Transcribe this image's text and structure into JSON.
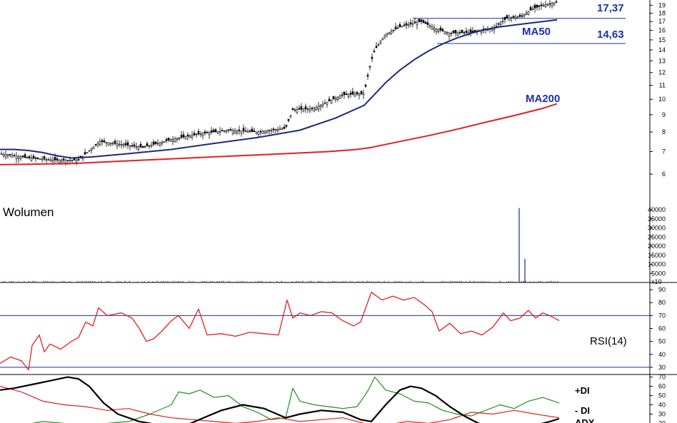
{
  "colors": {
    "ma50": "#1c2a7a",
    "ma200": "#e02020",
    "candle": "#000000",
    "volume": "#1c2a7a",
    "rsi": "#e02020",
    "rsi_bounds": "#1a2fb0",
    "plus_di": "#1f8f1f",
    "minus_di": "#e02020",
    "adx": "#000000",
    "annotation": "#1a2fb0"
  },
  "chart_data": [
    {
      "type": "line",
      "panel": "price",
      "log_scale": true,
      "ylim": [
        5.5,
        19.5
      ],
      "y_ticks": [
        "19",
        "18",
        "17",
        "16",
        "15",
        "14",
        "13",
        "12",
        "11",
        "10",
        "9",
        "8",
        "7",
        "6"
      ],
      "series": [
        {
          "name": "MA50",
          "x": [
            0,
            20,
            40,
            60,
            80,
            100,
            130,
            180,
            240,
            300,
            360,
            420,
            470,
            510,
            520,
            540,
            560,
            580,
            600,
            620,
            640,
            660,
            680,
            700,
            720,
            740,
            760,
            780
          ],
          "values": [
            7.1,
            7.1,
            7.05,
            6.95,
            6.8,
            6.7,
            6.75,
            6.9,
            7.1,
            7.4,
            7.7,
            8.1,
            8.8,
            9.6,
            10.1,
            11.2,
            12.2,
            13.1,
            13.9,
            14.6,
            15.2,
            15.7,
            16.1,
            16.4,
            16.6,
            16.8,
            17.0,
            17.2
          ]
        },
        {
          "name": "MA200",
          "x": [
            0,
            100,
            200,
            300,
            400,
            460,
            500,
            520,
            560,
            600,
            640,
            680,
            720,
            760,
            780
          ],
          "values": [
            6.4,
            6.45,
            6.6,
            6.75,
            6.9,
            7.0,
            7.1,
            7.2,
            7.5,
            7.8,
            8.15,
            8.55,
            8.95,
            9.4,
            9.7
          ]
        }
      ],
      "annotations": [
        {
          "text": "17,37",
          "value": 17.37
        },
        {
          "text": "14,63",
          "value": 14.63
        },
        {
          "text": "MA50"
        },
        {
          "text": "MA200"
        }
      ]
    },
    {
      "type": "bar",
      "panel": "volume",
      "title": "Wolumen",
      "y_ticks": [
        "40000",
        "35000",
        "30000",
        "25000",
        "20000",
        "15000",
        "10000",
        "5000"
      ],
      "unit_label": "x10",
      "spikes": [
        {
          "x": 727,
          "value": 41000
        },
        {
          "x": 735,
          "value": 13000
        }
      ],
      "baseline_level": 600
    },
    {
      "type": "line",
      "panel": "rsi",
      "title": "RSI(14)",
      "ylim": [
        25,
        95
      ],
      "y_ticks": [
        "90",
        "80",
        "70",
        "60",
        "50",
        "40",
        "30"
      ],
      "hlines": [
        70,
        30
      ],
      "series": [
        {
          "name": "RSI(14)",
          "x": [
            0,
            15,
            30,
            40,
            45,
            55,
            62,
            70,
            85,
            100,
            110,
            120,
            130,
            138,
            150,
            170,
            185,
            195,
            205,
            215,
            225,
            240,
            250,
            265,
            278,
            290,
            310,
            330,
            350,
            370,
            390,
            402,
            410,
            420,
            435,
            450,
            465,
            480,
            495,
            505,
            520,
            535,
            550,
            565,
            580,
            595,
            605,
            615,
            630,
            645,
            660,
            675,
            690,
            705,
            715,
            728,
            740,
            750,
            760,
            770,
            783
          ],
          "values": [
            33,
            38,
            35,
            28,
            47,
            55,
            42,
            48,
            44,
            50,
            53,
            65,
            62,
            76,
            70,
            72,
            68,
            60,
            50,
            52,
            57,
            66,
            70,
            60,
            75,
            55,
            56,
            54,
            57,
            56,
            55,
            82,
            68,
            72,
            70,
            73,
            72,
            66,
            62,
            65,
            88,
            82,
            85,
            82,
            84,
            78,
            73,
            58,
            64,
            56,
            58,
            55,
            61,
            72,
            66,
            68,
            74,
            68,
            72,
            70,
            66
          ]
        }
      ]
    },
    {
      "type": "line",
      "panel": "dmi",
      "ylim": [
        15,
        72
      ],
      "y_ticks": [
        "70",
        "60",
        "50",
        "40",
        "30",
        "20"
      ],
      "series": [
        {
          "name": "+DI",
          "x": [
            0,
            30,
            60,
            90,
            120,
            150,
            180,
            210,
            240,
            250,
            265,
            280,
            300,
            320,
            340,
            360,
            380,
            400,
            410,
            420,
            440,
            460,
            480,
            500,
            515,
            525,
            540,
            560,
            580,
            600,
            620,
            640,
            660,
            680,
            700,
            720,
            740,
            760,
            783
          ],
          "values": [
            14,
            18,
            22,
            20,
            16,
            20,
            22,
            30,
            40,
            54,
            52,
            56,
            48,
            50,
            38,
            32,
            24,
            26,
            58,
            44,
            40,
            38,
            36,
            38,
            55,
            70,
            56,
            52,
            44,
            42,
            34,
            30,
            28,
            34,
            40,
            36,
            44,
            48,
            42
          ]
        },
        {
          "name": "- DI",
          "x": [
            0,
            30,
            60,
            90,
            120,
            150,
            180,
            210,
            240,
            270,
            300,
            330,
            360,
            390,
            420,
            450,
            480,
            510,
            540,
            570,
            600,
            630,
            660,
            690,
            720,
            750,
            783
          ],
          "values": [
            60,
            54,
            44,
            40,
            38,
            34,
            36,
            30,
            26,
            24,
            22,
            20,
            22,
            26,
            22,
            24,
            26,
            20,
            18,
            22,
            20,
            24,
            32,
            30,
            34,
            30,
            26
          ]
        },
        {
          "name": "ADX",
          "x": [
            0,
            20,
            45,
            70,
            95,
            110,
            125,
            145,
            165,
            195,
            225,
            255,
            285,
            310,
            340,
            370,
            400,
            420,
            450,
            480,
            505,
            520,
            540,
            560,
            575,
            590,
            610,
            630,
            650,
            670,
            690,
            710,
            730,
            750,
            770,
            783
          ],
          "values": [
            56,
            58,
            62,
            66,
            70,
            68,
            60,
            42,
            30,
            22,
            18,
            16,
            26,
            34,
            40,
            36,
            26,
            30,
            34,
            32,
            24,
            22,
            40,
            56,
            60,
            58,
            50,
            38,
            28,
            20,
            16,
            14,
            16,
            18,
            22,
            25
          ]
        }
      ]
    }
  ],
  "labels": {
    "level_upper": "17,37",
    "level_lower": "14,63",
    "ma50": "MA50",
    "ma200": "MA200",
    "volume_title": "Wolumen",
    "volume_unit": "x10",
    "rsi_title": "RSI(14)",
    "plus_di": "+DI",
    "minus_di": "- DI",
    "adx": "ADX"
  }
}
